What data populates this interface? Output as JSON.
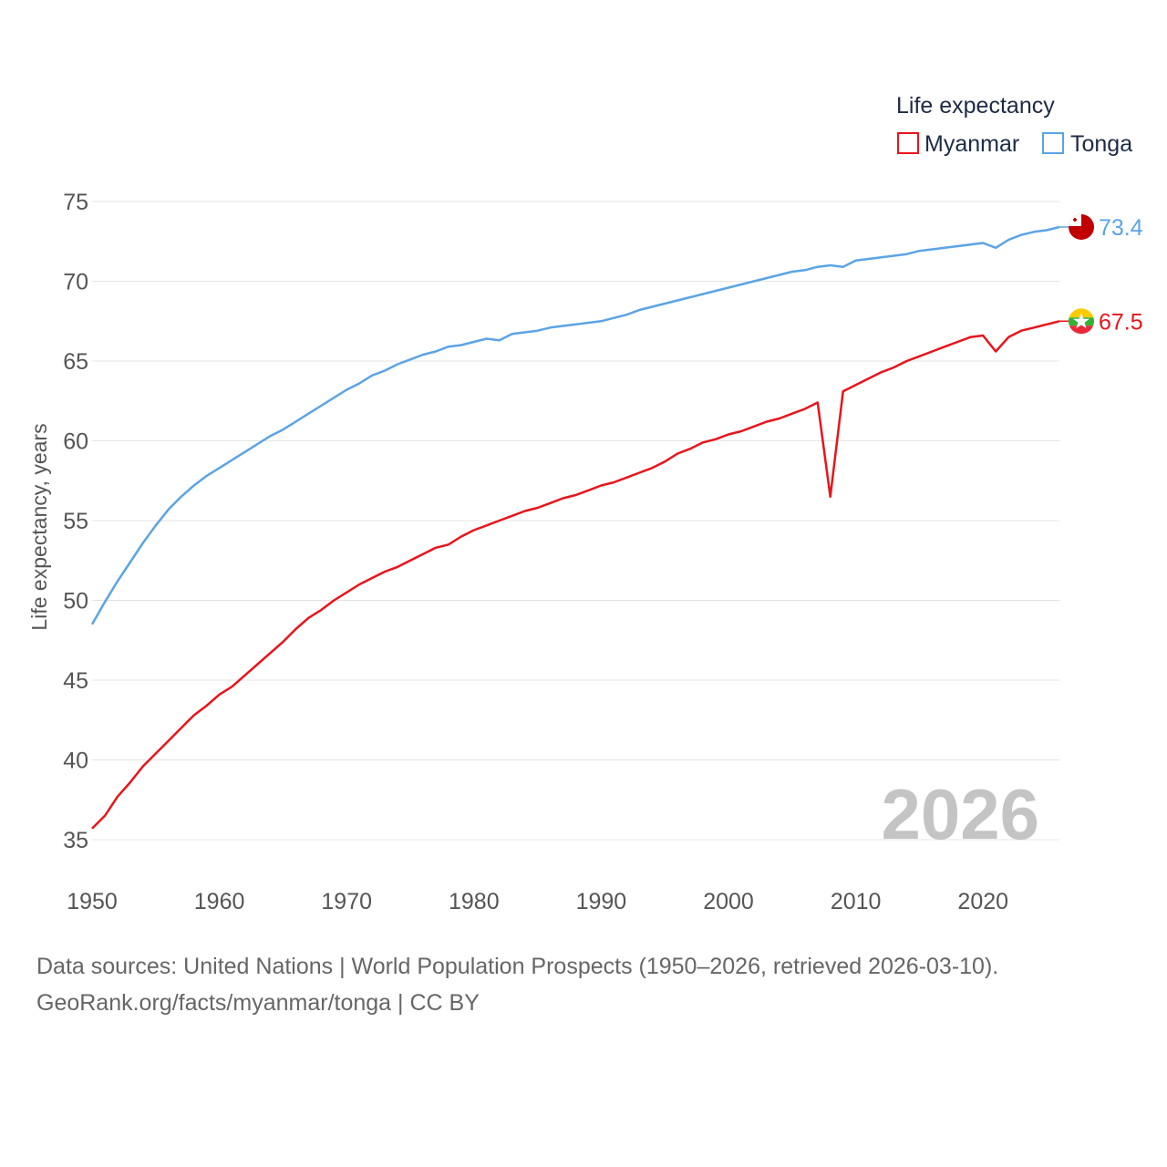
{
  "chart_data": {
    "type": "line",
    "legend_title": "Life expectancy",
    "ylabel": "Life expectancy, years",
    "xlim": [
      1950,
      2026
    ],
    "ylim": [
      35,
      75
    ],
    "x_ticks": [
      "1950",
      "1960",
      "1970",
      "1980",
      "1990",
      "2000",
      "2010",
      "2020"
    ],
    "y_ticks": [
      "35",
      "40",
      "45",
      "50",
      "55",
      "60",
      "65",
      "70",
      "75"
    ],
    "current_year": "2026",
    "x": [
      1950,
      1951,
      1952,
      1953,
      1954,
      1955,
      1956,
      1957,
      1958,
      1959,
      1960,
      1961,
      1962,
      1963,
      1964,
      1965,
      1966,
      1967,
      1968,
      1969,
      1970,
      1971,
      1972,
      1973,
      1974,
      1975,
      1976,
      1977,
      1978,
      1979,
      1980,
      1981,
      1982,
      1983,
      1984,
      1985,
      1986,
      1987,
      1988,
      1989,
      1990,
      1991,
      1992,
      1993,
      1994,
      1995,
      1996,
      1997,
      1998,
      1999,
      2000,
      2001,
      2002,
      2003,
      2004,
      2005,
      2006,
      2007,
      2008,
      2009,
      2010,
      2011,
      2012,
      2013,
      2014,
      2015,
      2016,
      2017,
      2018,
      2019,
      2020,
      2021,
      2022,
      2023,
      2024,
      2025,
      2026
    ],
    "series": [
      {
        "name": "Myanmar",
        "color": "#e8141a",
        "end_label": "67.5",
        "values": [
          35.7,
          36.5,
          37.7,
          38.6,
          39.6,
          40.4,
          41.2,
          42.0,
          42.8,
          43.4,
          44.1,
          44.6,
          45.3,
          46.0,
          46.7,
          47.4,
          48.2,
          48.9,
          49.4,
          50.0,
          50.5,
          51.0,
          51.4,
          51.8,
          52.1,
          52.5,
          52.9,
          53.3,
          53.5,
          54.0,
          54.4,
          54.7,
          55.0,
          55.3,
          55.6,
          55.8,
          56.1,
          56.4,
          56.6,
          56.9,
          57.2,
          57.4,
          57.7,
          58.0,
          58.3,
          58.7,
          59.2,
          59.5,
          59.9,
          60.1,
          60.4,
          60.6,
          60.9,
          61.2,
          61.4,
          61.7,
          62.0,
          62.4,
          56.5,
          63.1,
          63.5,
          63.9,
          64.3,
          64.6,
          65.0,
          65.3,
          65.6,
          65.9,
          66.2,
          66.5,
          66.6,
          65.6,
          66.5,
          66.9,
          67.1,
          67.3,
          67.5
        ]
      },
      {
        "name": "Tonga",
        "color": "#5aa4e6",
        "end_label": "73.4",
        "values": [
          48.5,
          49.9,
          51.2,
          52.4,
          53.6,
          54.7,
          55.7,
          56.5,
          57.2,
          57.8,
          58.3,
          58.8,
          59.3,
          59.8,
          60.3,
          60.7,
          61.2,
          61.7,
          62.2,
          62.7,
          63.2,
          63.6,
          64.1,
          64.4,
          64.8,
          65.1,
          65.4,
          65.6,
          65.9,
          66.0,
          66.2,
          66.4,
          66.3,
          66.7,
          66.8,
          66.9,
          67.1,
          67.2,
          67.3,
          67.4,
          67.5,
          67.7,
          67.9,
          68.2,
          68.4,
          68.6,
          68.8,
          69.0,
          69.2,
          69.4,
          69.6,
          69.8,
          70.0,
          70.2,
          70.4,
          70.6,
          70.7,
          70.9,
          71.0,
          70.9,
          71.3,
          71.4,
          71.5,
          71.6,
          71.7,
          71.9,
          72.0,
          72.1,
          72.2,
          72.3,
          72.4,
          72.1,
          72.6,
          72.9,
          73.1,
          73.2,
          73.4
        ]
      }
    ]
  },
  "footer": {
    "line1": "Data sources: United Nations | World Population Prospects (1950–2026, retrieved 2026-03-10).",
    "line2": "GeoRank.org/facts/myanmar/tonga | CC BY"
  }
}
